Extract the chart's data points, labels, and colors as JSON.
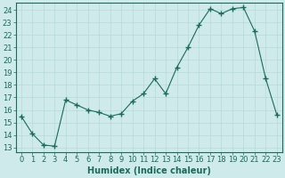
{
  "x": [
    0,
    1,
    2,
    3,
    4,
    5,
    6,
    7,
    8,
    9,
    10,
    11,
    12,
    13,
    14,
    15,
    16,
    17,
    18,
    19,
    20,
    21,
    22,
    23
  ],
  "y": [
    15.5,
    14.1,
    13.2,
    13.1,
    16.8,
    16.4,
    16.0,
    15.8,
    15.5,
    15.7,
    16.7,
    17.3,
    18.5,
    17.3,
    19.4,
    21.0,
    22.8,
    24.1,
    23.7,
    24.1,
    24.2,
    22.3,
    18.5,
    15.6
  ],
  "line_color": "#1a6b5a",
  "marker": "+",
  "marker_size": 4,
  "bg_color": "#ceeaea",
  "grid_color": "#b8d8d8",
  "xlabel": "Humidex (Indice chaleur)",
  "yticks": [
    13,
    14,
    15,
    16,
    17,
    18,
    19,
    20,
    21,
    22,
    23,
    24
  ],
  "xlim": [
    -0.5,
    23.5
  ],
  "ylim": [
    12.6,
    24.6
  ],
  "xlabel_fontsize": 7,
  "tick_fontsize": 6
}
